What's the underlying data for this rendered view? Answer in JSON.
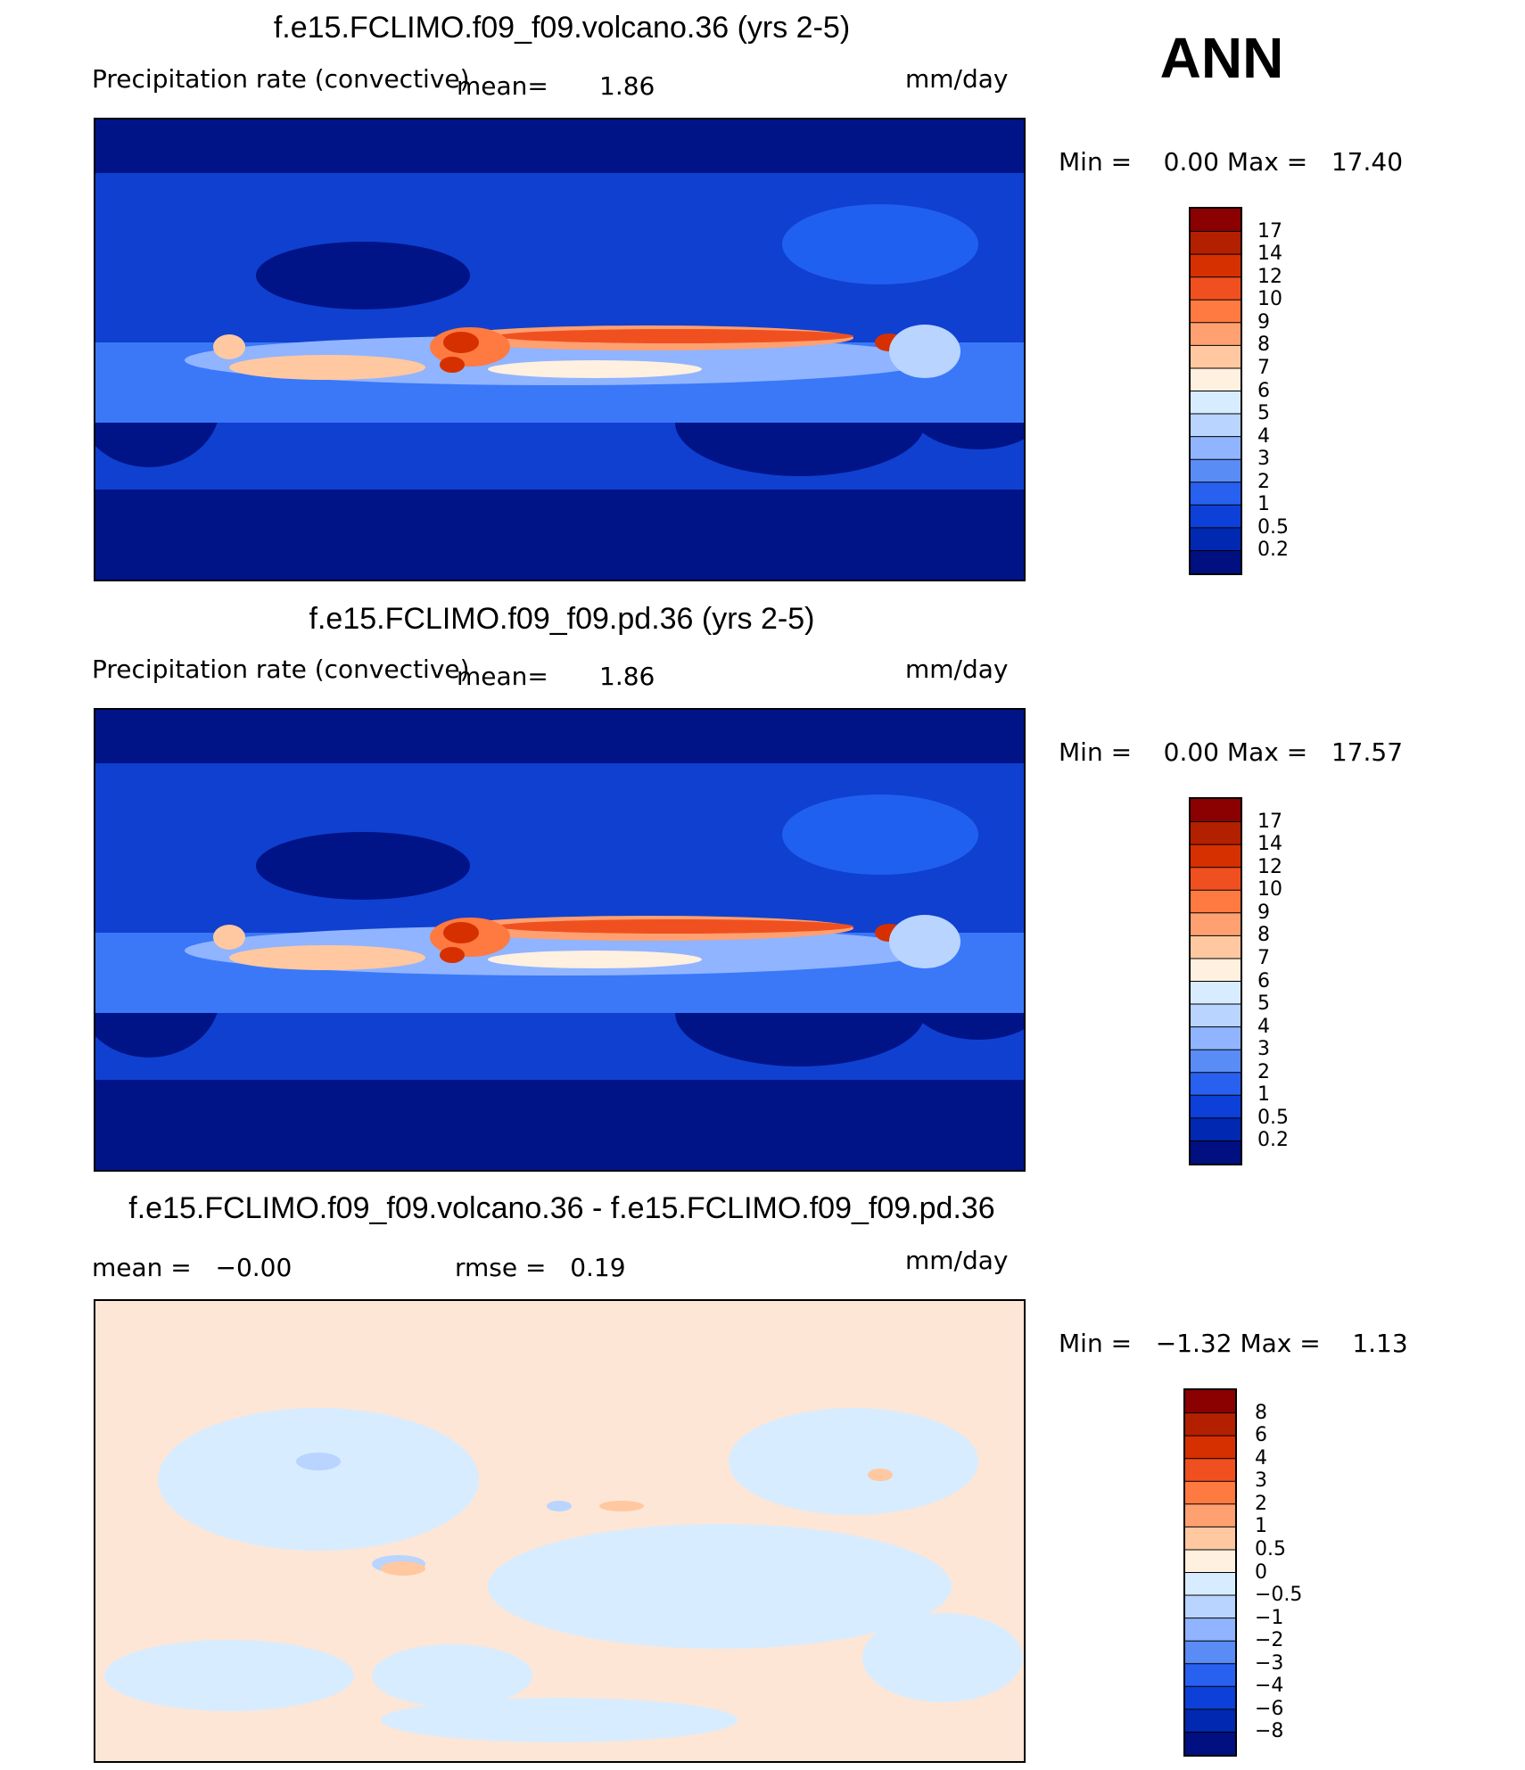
{
  "season": "ANN",
  "units": "mm/day",
  "panels": [
    {
      "title": "f.e15.FCLIMO.f09_f09.volcano.36 (yrs 2-5)",
      "variable": "Precipitation rate (convective)",
      "mean_label": "mean=",
      "mean_value": "1.86",
      "min_label": "Min =",
      "min_value": "0.00",
      "max_label": "Max =",
      "max_value": "17.40",
      "colorbar_labels": [
        "17",
        "14",
        "12",
        "10",
        "9",
        "8",
        "7",
        "6",
        "5",
        "4",
        "3",
        "2",
        "1",
        "0.5",
        "0.2"
      ],
      "colorbar_colors": [
        "#8b0000",
        "#b22000",
        "#d63000",
        "#f05020",
        "#ff7a40",
        "#ffa070",
        "#ffc8a0",
        "#fff0e0",
        "#d8ecff",
        "#b8d4ff",
        "#90b4ff",
        "#5a8cf5",
        "#2860f0",
        "#0c40d8",
        "#0028b0",
        "#001080"
      ]
    },
    {
      "title": "f.e15.FCLIMO.f09_f09.pd.36 (yrs 2-5)",
      "variable": "Precipitation rate (convective)",
      "mean_label": "mean=",
      "mean_value": "1.86",
      "min_label": "Min =",
      "min_value": "0.00",
      "max_label": "Max =",
      "max_value": "17.57",
      "colorbar_labels": [
        "17",
        "14",
        "12",
        "10",
        "9",
        "8",
        "7",
        "6",
        "5",
        "4",
        "3",
        "2",
        "1",
        "0.5",
        "0.2"
      ],
      "colorbar_colors": [
        "#8b0000",
        "#b22000",
        "#d63000",
        "#f05020",
        "#ff7a40",
        "#ffa070",
        "#ffc8a0",
        "#fff0e0",
        "#d8ecff",
        "#b8d4ff",
        "#90b4ff",
        "#5a8cf5",
        "#2860f0",
        "#0c40d8",
        "#0028b0",
        "#001080"
      ]
    },
    {
      "title": "f.e15.FCLIMO.f09_f09.volcano.36 - f.e15.FCLIMO.f09_f09.pd.36",
      "mean_label": "mean =",
      "mean_value": "−0.00",
      "rmse_label": "rmse =",
      "rmse_value": "0.19",
      "min_label": "Min =",
      "min_value": "−1.32",
      "max_label": "Max =",
      "max_value": "1.13",
      "colorbar_labels": [
        "8",
        "6",
        "4",
        "3",
        "2",
        "1",
        "0.5",
        "0",
        "−0.5",
        "−1",
        "−2",
        "−3",
        "−4",
        "−6",
        "−8"
      ],
      "colorbar_colors": [
        "#8b0000",
        "#b22000",
        "#d63000",
        "#f05020",
        "#ff7a40",
        "#ffa070",
        "#ffc8a0",
        "#fff0e0",
        "#d8ecff",
        "#b8d4ff",
        "#90b4ff",
        "#5a8cf5",
        "#2860f0",
        "#0c40d8",
        "#0028b0",
        "#001080"
      ]
    }
  ]
}
